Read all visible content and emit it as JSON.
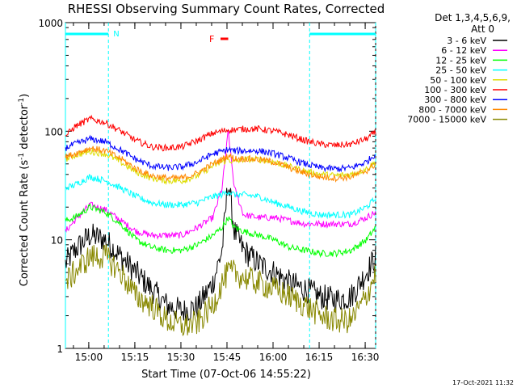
{
  "chart_data": {
    "type": "line",
    "title": "RHESSI Observing Summary Count Rates, Corrected",
    "xlabel": "Start Time (07-Oct-06 14:55:22)",
    "ylabel_parts": {
      "base": "Corrected Count Rate (s",
      "sup1": "-1",
      "mid": " detector",
      "sup2": "-1",
      "end": ")"
    },
    "x_unit": "minutes since 14:55:22",
    "xlim": [
      -3,
      98
    ],
    "ylim": [
      1,
      1000
    ],
    "y_scale": "log",
    "x_ticks": [
      {
        "label": "15:00",
        "value": 4.6
      },
      {
        "label": "15:15",
        "value": 19.6
      },
      {
        "label": "15:30",
        "value": 34.6
      },
      {
        "label": "15:45",
        "value": 49.6
      },
      {
        "label": "16:00",
        "value": 64.6
      },
      {
        "label": "16:15",
        "value": 79.6
      },
      {
        "label": "16:30",
        "value": 94.6
      }
    ],
    "y_ticks": [
      {
        "label": "1",
        "value": 1
      },
      {
        "label": "10",
        "value": 10
      },
      {
        "label": "100",
        "value": 100
      },
      {
        "label": "1000",
        "value": 1000
      }
    ],
    "legend_title": [
      "Det 1,3,4,5,6,9,",
      "Att 0"
    ],
    "legend_position": "right, outside plot",
    "x_samples": [
      -3,
      0,
      5,
      10,
      15,
      20,
      25,
      30,
      35,
      40,
      45,
      48,
      50,
      52,
      55,
      60,
      65,
      70,
      75,
      80,
      85,
      90,
      95,
      98
    ],
    "series": [
      {
        "name": "3 - 6 keV",
        "color": "#000000",
        "values": [
          6,
          8,
          11,
          10,
          7,
          5,
          3.5,
          2.5,
          2.2,
          2.4,
          4,
          8,
          35,
          12,
          8,
          6,
          5,
          4,
          3.5,
          3,
          2.8,
          3,
          5,
          7
        ]
      },
      {
        "name": "6 - 12 keV",
        "color": "#ff00ff",
        "values": [
          12,
          15,
          21,
          19,
          15,
          12,
          11,
          11,
          11,
          13,
          16,
          30,
          100,
          30,
          17,
          16,
          16,
          15,
          14,
          14,
          14,
          14,
          16,
          18
        ]
      },
      {
        "name": "12 - 25 keV",
        "color": "#00ff00",
        "values": [
          15,
          16,
          20,
          18,
          14,
          10,
          8.5,
          8,
          8,
          9,
          11,
          13,
          16,
          13,
          12,
          11,
          10,
          8.5,
          8,
          7.5,
          7.5,
          8,
          10,
          13
        ]
      },
      {
        "name": "25 - 50 keV",
        "color": "#00ffff",
        "values": [
          30,
          32,
          38,
          35,
          30,
          25,
          22,
          21,
          21,
          22,
          25,
          26,
          28,
          26,
          26,
          25,
          22,
          20,
          18,
          17,
          17,
          17,
          20,
          24
        ]
      },
      {
        "name": "50 - 100 keV",
        "color": "#dddd00",
        "values": [
          55,
          60,
          65,
          62,
          52,
          42,
          37,
          35,
          35,
          39,
          48,
          52,
          55,
          52,
          55,
          55,
          52,
          47,
          43,
          40,
          39,
          40,
          45,
          52
        ]
      },
      {
        "name": "100 - 300 keV",
        "color": "#ff0000",
        "values": [
          90,
          110,
          130,
          120,
          100,
          82,
          72,
          70,
          72,
          82,
          96,
          100,
          103,
          103,
          105,
          105,
          100,
          92,
          82,
          76,
          74,
          76,
          85,
          98
        ]
      },
      {
        "name": "300 - 800 keV",
        "color": "#0000ff",
        "values": [
          70,
          76,
          85,
          80,
          67,
          55,
          48,
          46,
          47,
          52,
          62,
          65,
          68,
          66,
          66,
          66,
          62,
          56,
          50,
          46,
          45,
          46,
          52,
          62
        ]
      },
      {
        "name": "800 - 7000 keV",
        "color": "#ff8800",
        "values": [
          58,
          62,
          70,
          66,
          56,
          45,
          39,
          37,
          37,
          41,
          50,
          55,
          60,
          56,
          56,
          55,
          52,
          46,
          41,
          38,
          37,
          38,
          43,
          50
        ]
      },
      {
        "name": "7000 - 15000 keV",
        "color": "#888800",
        "values": [
          4,
          5,
          7,
          7,
          5,
          3,
          2.5,
          1.8,
          1.6,
          1.7,
          2.5,
          4,
          5,
          5,
          4.5,
          4,
          3.5,
          3,
          2.5,
          2,
          1.8,
          1.8,
          3,
          5
        ]
      }
    ],
    "annotations": {
      "flare_flag": {
        "label": "F",
        "x_range": [
          47.5,
          50
        ],
        "color": "#ff0000"
      },
      "night_flag": {
        "label": "N",
        "color": "#00ffff",
        "intervals": [
          [
            -3,
            11
          ],
          [
            76.5,
            98
          ]
        ]
      }
    },
    "footer_date": "17-Oct-2021 11:32"
  }
}
